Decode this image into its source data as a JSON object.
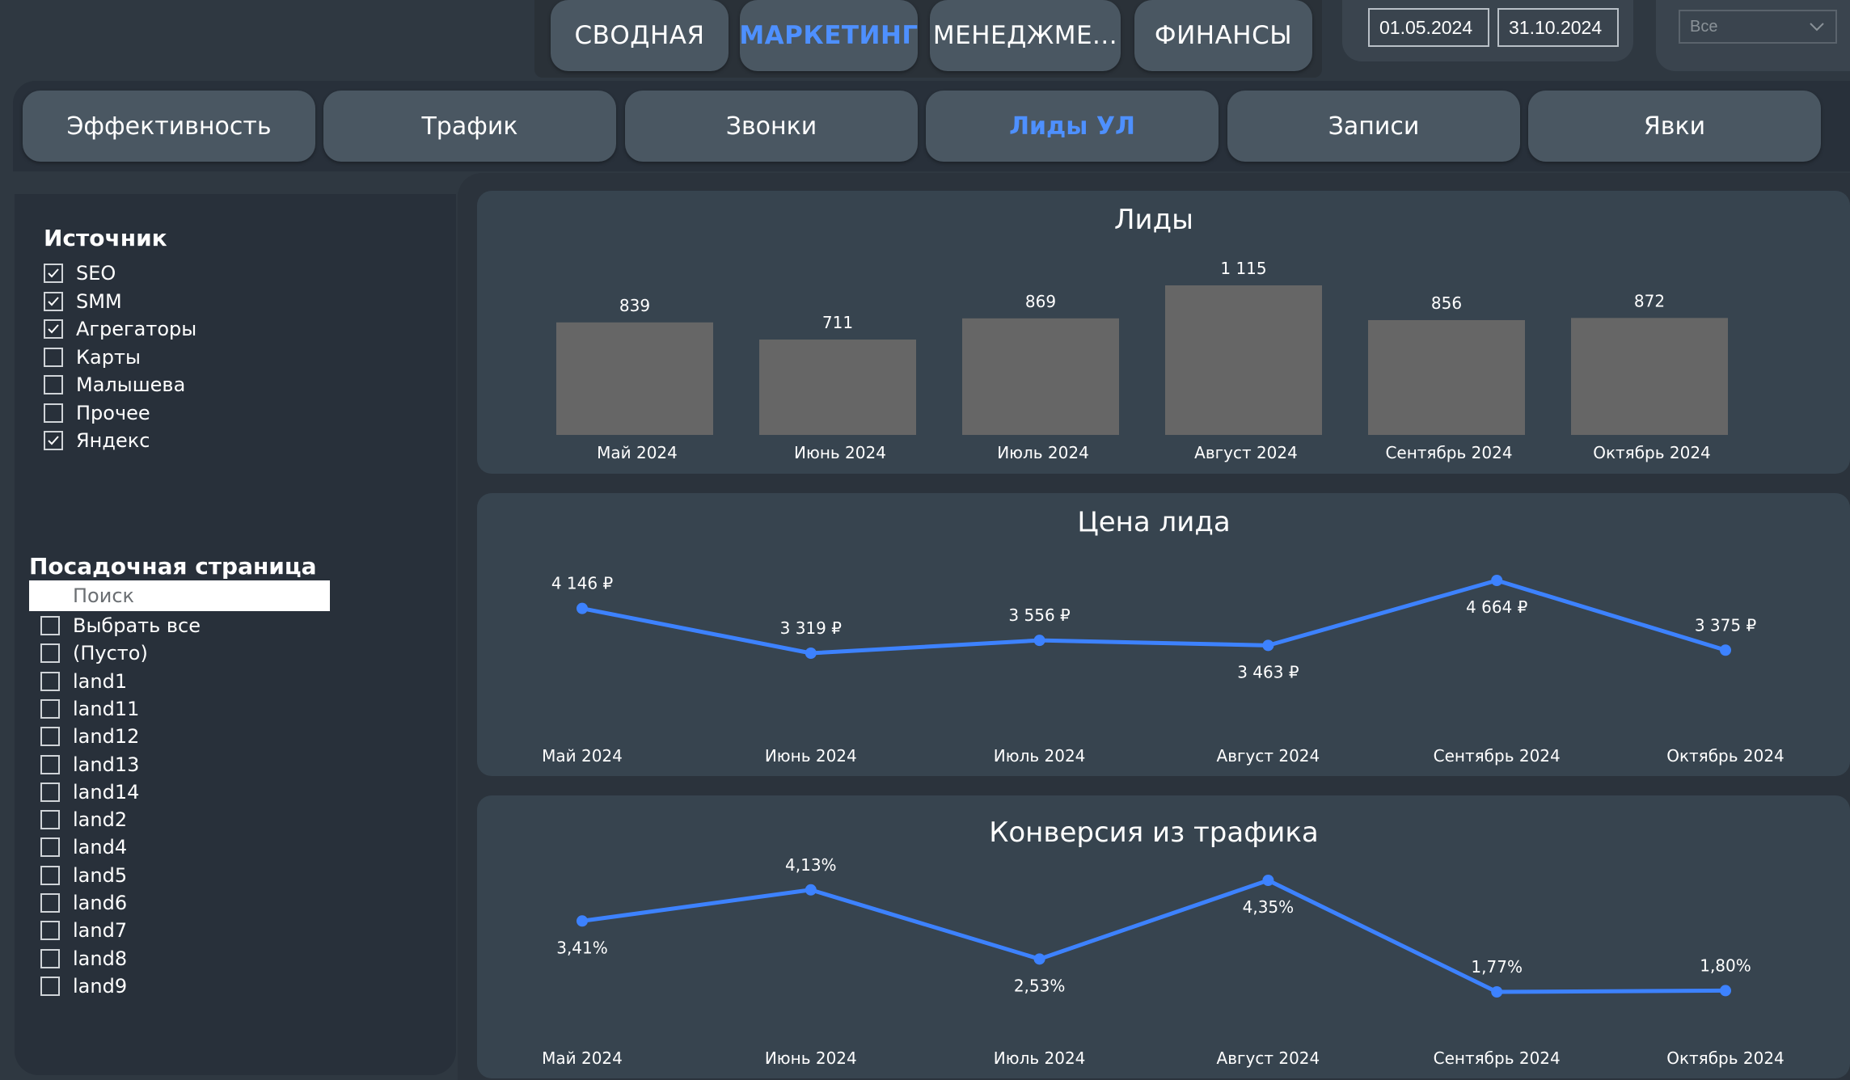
{
  "nav": {
    "tabs": [
      "СВОДНАЯ",
      "МАРКЕТИНГ",
      "МЕНЕДЖМЕ...",
      "ФИНАНСЫ"
    ],
    "active_tab": "МАРКЕТИНГ"
  },
  "dates": {
    "from": "01.05.2024",
    "to": "31.10.2024"
  },
  "filter": {
    "selected": "Все"
  },
  "subnav": {
    "tabs": [
      "Эффективность",
      "Трафик",
      "Звонки",
      "Лиды УЛ",
      "Записи",
      "Явки"
    ],
    "active_tab": "Лиды УЛ"
  },
  "sidebar": {
    "source": {
      "title": "Источник",
      "items": [
        {
          "label": "SEO",
          "checked": true
        },
        {
          "label": "SMM",
          "checked": true
        },
        {
          "label": "Агрегаторы",
          "checked": true
        },
        {
          "label": "Карты",
          "checked": false
        },
        {
          "label": "Малышева",
          "checked": false
        },
        {
          "label": "Прочее",
          "checked": false
        },
        {
          "label": "Яндекс",
          "checked": true
        }
      ]
    },
    "landing": {
      "title": "Посадочная страница",
      "search_placeholder": "Поиск",
      "items": [
        "Выбрать все",
        "(Пусто)",
        "land1",
        "land11",
        "land12",
        "land13",
        "land14",
        "land2",
        "land4",
        "land5",
        "land6",
        "land7",
        "land8",
        "land9"
      ]
    }
  },
  "colors": {
    "accent": "#4e90ff",
    "bar": "#666666",
    "line": "#3d82ff"
  },
  "chart_data": [
    {
      "type": "bar",
      "title": "Лиды",
      "categories": [
        "Май 2024",
        "Июнь 2024",
        "Июль 2024",
        "Август 2024",
        "Сентябрь 2024",
        "Октябрь 2024"
      ],
      "values": [
        839,
        711,
        869,
        1115,
        856,
        872
      ],
      "data_labels": [
        "839",
        "711",
        "869",
        "1 115",
        "856",
        "872"
      ]
    },
    {
      "type": "line",
      "title": "Цена лида",
      "categories": [
        "Май 2024",
        "Июнь 2024",
        "Июль 2024",
        "Август 2024",
        "Сентябрь 2024",
        "Октябрь 2024"
      ],
      "values": [
        4146,
        3319,
        3556,
        3463,
        4664,
        3375
      ],
      "data_labels": [
        "4 146 ₽",
        "3 319 ₽",
        "3 556 ₽",
        "3 463 ₽",
        "4 664 ₽",
        "3 375 ₽"
      ]
    },
    {
      "type": "line",
      "title": "Конверсия из трафика",
      "categories": [
        "Май 2024",
        "Июнь 2024",
        "Июль 2024",
        "Август 2024",
        "Сентябрь 2024",
        "Октябрь 2024"
      ],
      "values": [
        3.41,
        4.13,
        2.53,
        4.35,
        1.77,
        1.8
      ],
      "data_labels": [
        "3,41%",
        "4,13%",
        "2,53%",
        "4,35%",
        "1,77%",
        "1,80%"
      ]
    }
  ]
}
